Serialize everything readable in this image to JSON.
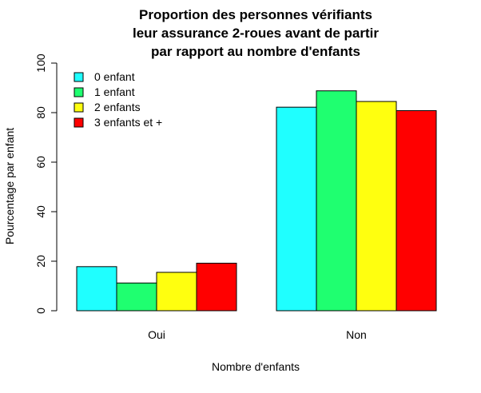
{
  "chart_data": {
    "type": "bar",
    "title_lines": [
      "Proportion des personnes vérifiants",
      "leur assurance 2-roues avant de partir",
      "par rapport au nombre d'enfants"
    ],
    "xlabel": "Nombre d'enfants",
    "ylabel": "Pourcentage par enfant",
    "categories": [
      "Oui",
      "Non"
    ],
    "ylim": [
      0,
      100
    ],
    "yticks": [
      "0",
      "20",
      "40",
      "60",
      "80",
      "100"
    ],
    "grid": false,
    "legend_position": "top-left",
    "series": [
      {
        "name": "0 enfant",
        "color": "#1FFFFF",
        "values": [
          17.8,
          82.2
        ]
      },
      {
        "name": "1 enfant",
        "color": "#1FFF70",
        "values": [
          11.2,
          88.8
        ]
      },
      {
        "name": "2 enfants",
        "color": "#FFFF0F",
        "values": [
          15.5,
          84.5
        ]
      },
      {
        "name": "3 enfants et +",
        "color": "#FF0000",
        "values": [
          19.2,
          80.8
        ]
      }
    ]
  }
}
